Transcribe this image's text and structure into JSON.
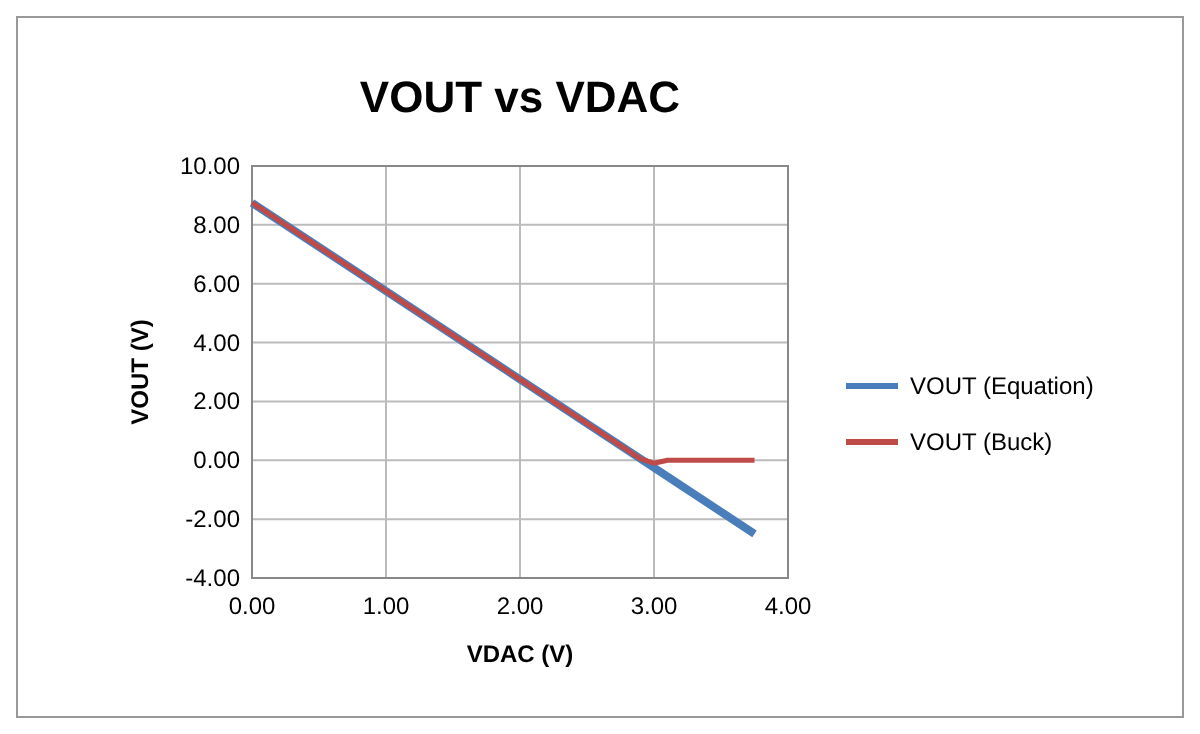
{
  "chart_data": {
    "type": "line",
    "title": "VOUT vs VDAC",
    "xlabel": "VDAC (V)",
    "ylabel": "VOUT (V)",
    "xlim": [
      0,
      4
    ],
    "xticks": [
      {
        "value": 0,
        "label": "0.00"
      },
      {
        "value": 1,
        "label": "1.00"
      },
      {
        "value": 2,
        "label": "2.00"
      },
      {
        "value": 3,
        "label": "3.00"
      },
      {
        "value": 4,
        "label": "4.00"
      }
    ],
    "ylim": [
      -4,
      10
    ],
    "yticks": [
      {
        "value": -4,
        "label": "-4.00"
      },
      {
        "value": -2,
        "label": "-2.00"
      },
      {
        "value": 0,
        "label": "0.00"
      },
      {
        "value": 2,
        "label": "2.00"
      },
      {
        "value": 4,
        "label": "4.00"
      },
      {
        "value": 6,
        "label": "6.00"
      },
      {
        "value": 8,
        "label": "8.00"
      },
      {
        "value": 10,
        "label": "10.00"
      }
    ],
    "grid": true,
    "legend": "right",
    "marker": "none",
    "line_style": "solid",
    "series": [
      {
        "name": "VOUT (Equation)",
        "color": "#4a7ebb",
        "x": [
          0,
          3.75
        ],
        "values": [
          8.75,
          -2.5
        ]
      },
      {
        "name": "VOUT (Buck)",
        "color": "#be4b48",
        "x": [
          0,
          2.9,
          3.0,
          3.1,
          3.75
        ],
        "values": [
          8.75,
          0.05,
          -0.1,
          0,
          0
        ]
      }
    ]
  }
}
